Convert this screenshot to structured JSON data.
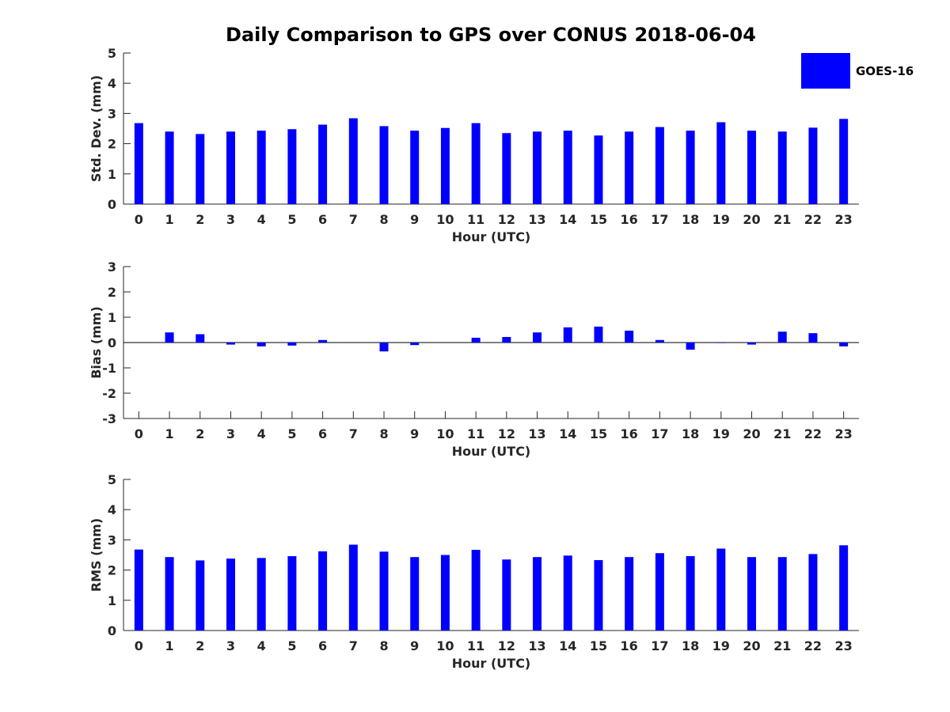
{
  "title": "Daily Comparison to GPS over CONUS 2018-06-04",
  "legend": {
    "label": "GOES-16",
    "color": "#0000ff"
  },
  "colors": {
    "bar": "#0000ff",
    "axis": "#262626"
  },
  "chart_data": [
    {
      "type": "bar",
      "xlabel": "Hour (UTC)",
      "ylabel": "Std. Dev. (mm)",
      "ylim": [
        0,
        5
      ],
      "yticks": [
        0,
        1,
        2,
        3,
        4,
        5
      ],
      "categories": [
        0,
        1,
        2,
        3,
        4,
        5,
        6,
        7,
        8,
        9,
        10,
        11,
        12,
        13,
        14,
        15,
        16,
        17,
        18,
        19,
        20,
        21,
        22,
        23
      ],
      "series": [
        {
          "name": "GOES-16",
          "values": [
            2.68,
            2.4,
            2.32,
            2.4,
            2.43,
            2.48,
            2.63,
            2.84,
            2.58,
            2.43,
            2.52,
            2.68,
            2.35,
            2.4,
            2.43,
            2.27,
            2.4,
            2.55,
            2.43,
            2.71,
            2.43,
            2.4,
            2.53,
            2.82
          ]
        }
      ]
    },
    {
      "type": "bar",
      "xlabel": "Hour (UTC)",
      "ylabel": "Bias (mm)",
      "ylim": [
        -3,
        3
      ],
      "yticks": [
        -3,
        -2,
        -1,
        0,
        1,
        2,
        3
      ],
      "categories": [
        0,
        1,
        2,
        3,
        4,
        5,
        6,
        7,
        8,
        9,
        10,
        11,
        12,
        13,
        14,
        15,
        16,
        17,
        18,
        19,
        20,
        21,
        22,
        23
      ],
      "series": [
        {
          "name": "GOES-16",
          "values": [
            0.0,
            0.4,
            0.33,
            -0.08,
            -0.15,
            -0.12,
            0.1,
            0.0,
            -0.35,
            -0.1,
            0.0,
            0.19,
            0.22,
            0.4,
            0.6,
            0.63,
            0.47,
            0.1,
            -0.28,
            -0.02,
            -0.08,
            0.43,
            0.37,
            -0.15
          ]
        }
      ]
    },
    {
      "type": "bar",
      "xlabel": "Hour (UTC)",
      "ylabel": "RMS (mm)",
      "ylim": [
        0,
        5
      ],
      "yticks": [
        0,
        1,
        2,
        3,
        4,
        5
      ],
      "categories": [
        0,
        1,
        2,
        3,
        4,
        5,
        6,
        7,
        8,
        9,
        10,
        11,
        12,
        13,
        14,
        15,
        16,
        17,
        18,
        19,
        20,
        21,
        22,
        23
      ],
      "series": [
        {
          "name": "GOES-16",
          "values": [
            2.68,
            2.43,
            2.32,
            2.38,
            2.4,
            2.46,
            2.62,
            2.84,
            2.61,
            2.43,
            2.5,
            2.67,
            2.35,
            2.43,
            2.48,
            2.33,
            2.43,
            2.56,
            2.46,
            2.71,
            2.43,
            2.43,
            2.53,
            2.82
          ]
        }
      ]
    }
  ]
}
